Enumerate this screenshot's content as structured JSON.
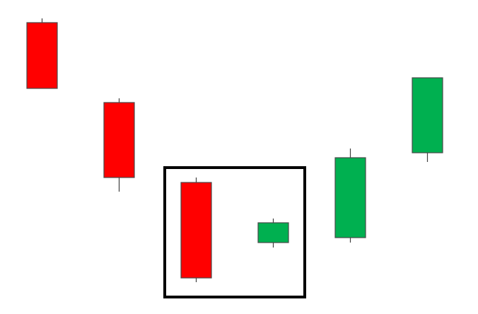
{
  "chart_data": {
    "type": "candlestick",
    "title": "",
    "xlabel": "",
    "ylabel": "",
    "axes_visible": false,
    "grid": false,
    "legend": "none",
    "ylim": [
      0,
      444
    ],
    "colors": {
      "bullish": "#00b050",
      "bearish": "#ff0000",
      "outline": "#4a4a4a",
      "wick": "#404040",
      "highlight": "#000000",
      "background": "#ffffff"
    },
    "candles": [
      {
        "index": 1,
        "open": 412,
        "high": 418,
        "low": 319,
        "close": 319,
        "direction": "bearish"
      },
      {
        "index": 2,
        "open": 299,
        "high": 305,
        "low": 173,
        "close": 193,
        "direction": "bearish"
      },
      {
        "index": 3,
        "open": 186,
        "high": 193,
        "low": 45,
        "close": 51,
        "direction": "bearish"
      },
      {
        "index": 4,
        "open": 101,
        "high": 135,
        "low": 94,
        "close": 129,
        "direction": "bullish"
      },
      {
        "index": 5,
        "open": 108,
        "high": 234,
        "low": 101,
        "close": 221,
        "direction": "bullish"
      },
      {
        "index": 6,
        "open": 228,
        "high": 334,
        "low": 215,
        "close": 334,
        "direction": "bullish"
      }
    ],
    "highlight": {
      "candle_indices": [
        3,
        4
      ],
      "low": 24,
      "high": 207
    }
  }
}
